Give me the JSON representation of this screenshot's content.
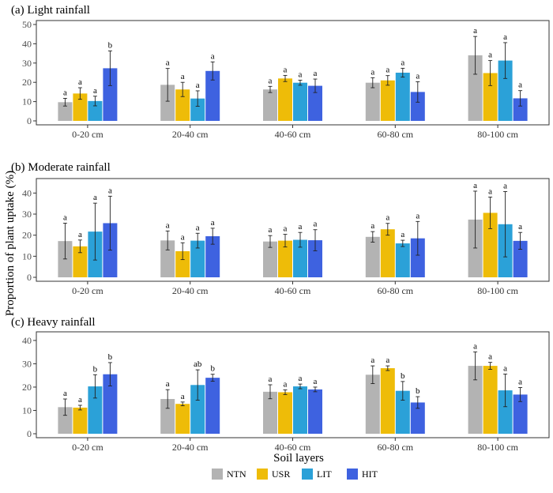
{
  "chart_data": {
    "type": "bar",
    "ylabel": "Proportion of plant uptake (%)",
    "xlabel": "Soil layers",
    "categories": [
      "0-20 cm",
      "20-40 cm",
      "40-60 cm",
      "60-80 cm",
      "80-100 cm"
    ],
    "legend": {
      "position": "bottom",
      "entries": [
        {
          "name": "NTN",
          "color": "#b3b3b3"
        },
        {
          "name": "USR",
          "color": "#eebc08"
        },
        {
          "name": "LIT",
          "color": "#2ba1d8"
        },
        {
          "name": "HIT",
          "color": "#3e62e0"
        }
      ]
    },
    "grid": false,
    "panels": [
      {
        "title": "(a) Light rainfall",
        "ylim": [
          0,
          50
        ],
        "yticks": [
          0,
          10,
          20,
          30,
          40,
          50
        ],
        "series": [
          {
            "name": "NTN",
            "values": [
              9.7,
              18.7,
              16.3,
              19.8,
              34.0
            ],
            "errors": [
              2.0,
              8.5,
              1.6,
              2.6,
              9.8
            ],
            "labels": [
              "a",
              "a",
              "a",
              "a",
              "a"
            ]
          },
          {
            "name": "USR",
            "values": [
              14.2,
              16.3,
              22.0,
              21.0,
              24.8
            ],
            "errors": [
              3.0,
              3.7,
              1.6,
              2.5,
              6.5
            ],
            "labels": [
              "a",
              "a",
              "a",
              "a",
              "a"
            ]
          },
          {
            "name": "LIT",
            "values": [
              10.3,
              11.6,
              19.8,
              25.0,
              31.3
            ],
            "errors": [
              2.5,
              4.0,
              1.3,
              2.3,
              9.3
            ],
            "labels": [
              "a",
              "a",
              "a",
              "a",
              "a"
            ]
          },
          {
            "name": "HIT",
            "values": [
              27.3,
              25.9,
              18.2,
              15.0,
              11.7
            ],
            "errors": [
              9.0,
              4.7,
              3.5,
              5.3,
              4.0
            ],
            "labels": [
              "b",
              "a",
              "a",
              "a",
              "a"
            ]
          }
        ]
      },
      {
        "title": "(b) Moderate rainfall",
        "ylim": [
          0,
          45
        ],
        "yticks": [
          0,
          10,
          20,
          30,
          40
        ],
        "series": [
          {
            "name": "NTN",
            "values": [
              17.2,
              17.5,
              17.0,
              19.2,
              27.4
            ],
            "errors": [
              8.5,
              4.5,
              2.8,
              2.5,
              13.5
            ],
            "labels": [
              "a",
              "a",
              "a",
              "a",
              "a"
            ]
          },
          {
            "name": "USR",
            "values": [
              14.7,
              12.4,
              17.4,
              22.8,
              30.6
            ],
            "errors": [
              3.0,
              4.0,
              3.0,
              2.8,
              7.5
            ],
            "labels": [
              "a",
              "a",
              "a",
              "a",
              "a"
            ]
          },
          {
            "name": "LIT",
            "values": [
              21.7,
              17.4,
              17.8,
              16.1,
              25.2
            ],
            "errors": [
              13.5,
              3.5,
              3.5,
              1.5,
              15.5
            ],
            "labels": [
              "a",
              "a",
              "a",
              "a",
              "a"
            ]
          },
          {
            "name": "HIT",
            "values": [
              25.7,
              19.5,
              17.6,
              18.5,
              17.3
            ],
            "errors": [
              12.8,
              3.8,
              5.0,
              8.0,
              4.0
            ],
            "labels": [
              "a",
              "a",
              "a",
              "a",
              "a"
            ]
          }
        ]
      },
      {
        "title": "(c) Heavy rainfall",
        "ylim": [
          0,
          42
        ],
        "yticks": [
          0,
          10,
          20,
          30,
          40
        ],
        "series": [
          {
            "name": "NTN",
            "values": [
              11.4,
              14.9,
              18.0,
              25.3,
              29.1
            ],
            "errors": [
              3.5,
              4.0,
              3.0,
              3.8,
              6.0
            ],
            "labels": [
              "a",
              "a",
              "a",
              "a",
              "a"
            ]
          },
          {
            "name": "USR",
            "values": [
              11.2,
              12.8,
              17.8,
              28.1,
              29.1
            ],
            "errors": [
              1.0,
              0.8,
              1.0,
              1.0,
              1.5
            ],
            "labels": [
              "a",
              "a",
              "a",
              "a",
              "a"
            ]
          },
          {
            "name": "LIT",
            "values": [
              20.3,
              20.9,
              20.3,
              18.4,
              18.6
            ],
            "errors": [
              5.0,
              6.5,
              1.0,
              4.0,
              7.0
            ],
            "labels": [
              "b",
              "ab",
              "a",
              "b",
              "a"
            ]
          },
          {
            "name": "HIT",
            "values": [
              25.5,
              24.0,
              19.0,
              13.4,
              16.8
            ],
            "errors": [
              5.0,
              1.5,
              1.0,
              2.5,
              3.0
            ],
            "labels": [
              "b",
              "b",
              "a",
              "b",
              "a"
            ]
          }
        ]
      }
    ]
  }
}
